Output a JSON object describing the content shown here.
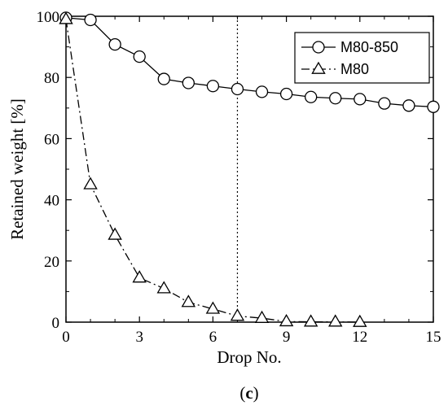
{
  "chart_data": {
    "type": "line",
    "xlabel": "Drop No.",
    "ylabel": "Retained weight [%]",
    "xlim": [
      0,
      15
    ],
    "ylim": [
      0,
      100
    ],
    "x_ticks": [
      0,
      3,
      6,
      9,
      12,
      15
    ],
    "y_ticks": [
      0,
      20,
      40,
      60,
      80,
      100
    ],
    "grid": false,
    "legend_position": "top-right",
    "reference_line": {
      "x": 7,
      "style": "dotted"
    },
    "series": [
      {
        "name": "M80-850",
        "marker": "circle",
        "line_style": "solid",
        "x": [
          0,
          1,
          2,
          3,
          4,
          5,
          6,
          7,
          8,
          9,
          10,
          11,
          12,
          13,
          14,
          15
        ],
        "y": [
          99.5,
          98.8,
          90.8,
          86.8,
          79.5,
          78.2,
          77.2,
          76.2,
          75.3,
          74.6,
          73.6,
          73.2,
          72.9,
          71.5,
          70.8,
          70.4
        ]
      },
      {
        "name": "M80",
        "marker": "triangle",
        "line_style": "dashdot",
        "x": [
          0,
          1,
          2,
          3,
          4,
          5,
          6,
          7,
          8,
          9,
          10,
          11,
          12
        ],
        "y": [
          99.0,
          45.0,
          28.5,
          14.5,
          11.0,
          6.5,
          4.3,
          2.0,
          1.3,
          0.2,
          0.1,
          0.1,
          0.0
        ]
      }
    ]
  },
  "caption": {
    "open": "(",
    "letter": "c",
    "close": ")"
  }
}
